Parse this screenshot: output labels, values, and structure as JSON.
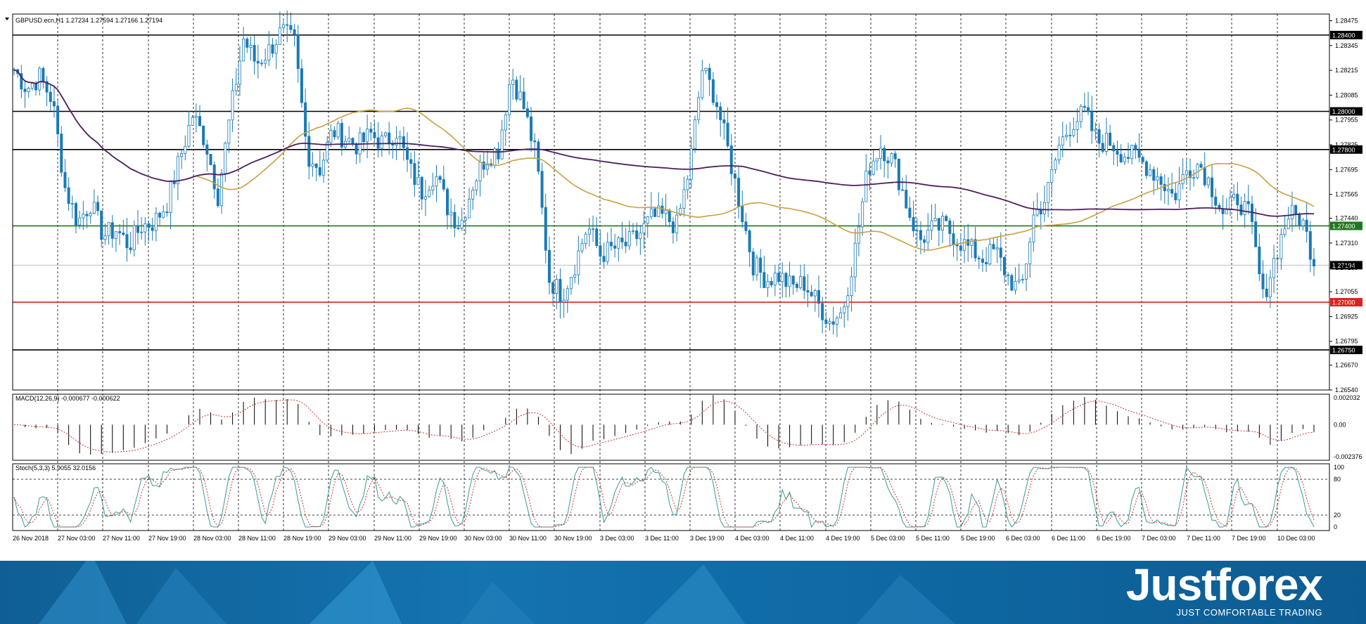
{
  "header": {
    "symbol_label": "GBPUSD.ecn,H1  1.27234 1.27594 1.27166 1.27194"
  },
  "macd": {
    "label": "MACD(12,26,9) -0.000677 -0.000622",
    "ticks": [
      "0.002032",
      "0.00",
      "-0.002376"
    ]
  },
  "stoch": {
    "label": "Stoch(5,3,3) 5.9055 32.0156",
    "ticks": [
      "100",
      "80",
      "20",
      "0"
    ]
  },
  "brand": {
    "name": "Justforex",
    "tagline": "JUST COMFORTABLE TRADING"
  },
  "colors": {
    "bull": "#1a7ab5",
    "ma_fast": "#c8a040",
    "ma_slow": "#4b2060",
    "level_black": "#000000",
    "level_green": "#1b7a1b",
    "level_red": "#e02020",
    "stoch_main": "#3a9a95",
    "signal": "#cc3333"
  },
  "chart_data": {
    "type": "candlestick",
    "symbol": "GBPUSD.ecn",
    "timeframe": "H1",
    "last_price": "1.27194",
    "price_axis_ticks": [
      "1.28475",
      "1.28345",
      "1.28215",
      "1.28085",
      "1.27955",
      "1.27825",
      "1.27695",
      "1.27565",
      "1.27440",
      "1.27310",
      "1.27180",
      "1.27055",
      "1.26925",
      "1.26795",
      "1.26670",
      "1.26540"
    ],
    "ylim": [
      1.2654,
      1.2851
    ],
    "horizontal_levels": [
      {
        "price": 1.284,
        "label": "1.28400",
        "color": "black"
      },
      {
        "price": 1.28,
        "label": "1.28000",
        "color": "black"
      },
      {
        "price": 1.278,
        "label": "1.27800",
        "color": "black"
      },
      {
        "price": 1.274,
        "label": "1.27400",
        "color": "green"
      },
      {
        "price": 1.27,
        "label": "1.27000",
        "color": "red"
      },
      {
        "price": 1.2675,
        "label": "1.26750",
        "color": "black"
      }
    ],
    "x_labels": [
      "26 Nov 2018",
      "27 Nov 03:00",
      "27 Nov 11:00",
      "27 Nov 19:00",
      "28 Nov 03:00",
      "28 Nov 11:00",
      "28 Nov 19:00",
      "29 Nov 03:00",
      "29 Nov 11:00",
      "29 Nov 19:00",
      "30 Nov 03:00",
      "30 Nov 11:00",
      "30 Nov 19:00",
      "3 Dec 03:00",
      "3 Dec 11:00",
      "3 Dec 19:00",
      "4 Dec 03:00",
      "4 Dec 11:00",
      "4 Dec 19:00",
      "5 Dec 03:00",
      "5 Dec 11:00",
      "5 Dec 19:00",
      "6 Dec 03:00",
      "6 Dec 11:00",
      "6 Dec 19:00",
      "7 Dec 03:00",
      "7 Dec 11:00",
      "7 Dec 19:00",
      "10 Dec 03:00"
    ],
    "close_path": [
      1.2822,
      1.2812,
      1.2818,
      1.2806,
      1.276,
      1.2742,
      1.2752,
      1.2735,
      1.2738,
      1.273,
      1.274,
      1.2742,
      1.2752,
      1.2775,
      1.2798,
      1.2785,
      1.2756,
      1.28,
      1.2838,
      1.2825,
      1.2832,
      1.2842,
      1.2836,
      1.2778,
      1.277,
      1.279,
      1.2786,
      1.2782,
      1.2788,
      1.2783,
      1.279,
      1.277,
      1.2758,
      1.2768,
      1.275,
      1.274,
      1.2762,
      1.2776,
      1.278,
      1.282,
      1.2802,
      1.2775,
      1.2712,
      1.2704,
      1.272,
      1.274,
      1.2725,
      1.2728,
      1.273,
      1.2735,
      1.2744,
      1.2745,
      1.274,
      1.277,
      1.2822,
      1.2808,
      1.278,
      1.275,
      1.272,
      1.2712,
      1.2714,
      1.2708,
      1.271,
      1.27,
      1.269,
      1.2695,
      1.2728,
      1.277,
      1.2782,
      1.2774,
      1.2752,
      1.2732,
      1.2738,
      1.274,
      1.2733,
      1.2728,
      1.2723,
      1.2727,
      1.2713,
      1.2705,
      1.2745,
      1.2755,
      1.2782,
      1.2794,
      1.2799,
      1.2784,
      1.2784,
      1.2778,
      1.2776,
      1.2771,
      1.2764,
      1.2755,
      1.2769,
      1.2773,
      1.276,
      1.2745,
      1.2755,
      1.2744,
      1.2702,
      1.2725,
      1.2746,
      1.2744,
      1.2722
    ],
    "macd_ylim": [
      -0.002376,
      0.002032
    ],
    "stoch_ylim": [
      0,
      100
    ]
  }
}
